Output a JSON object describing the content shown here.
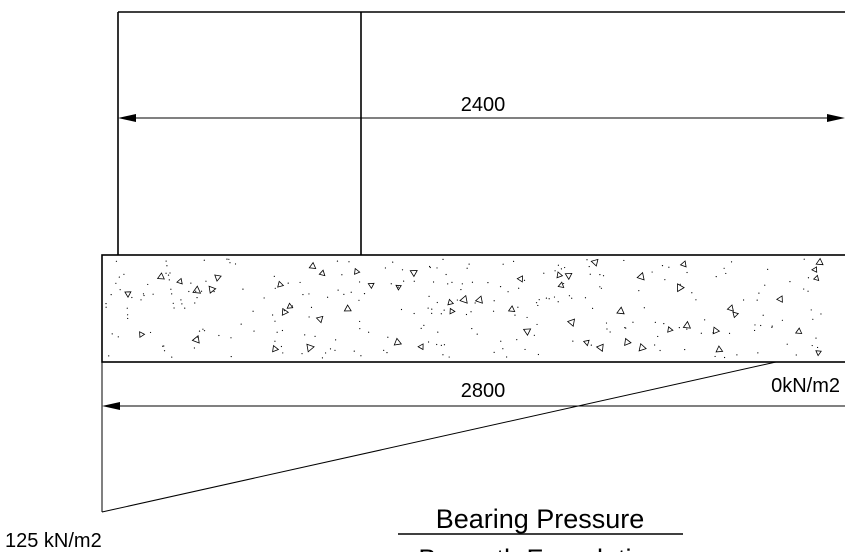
{
  "dimensions": {
    "top": "2400",
    "bottom": "2800"
  },
  "pressure": {
    "right": "0kN/m2",
    "left": "125 kN/m2"
  },
  "caption": {
    "title": "Bearing Pressure",
    "subtitle": "Beneath Foundation"
  }
}
